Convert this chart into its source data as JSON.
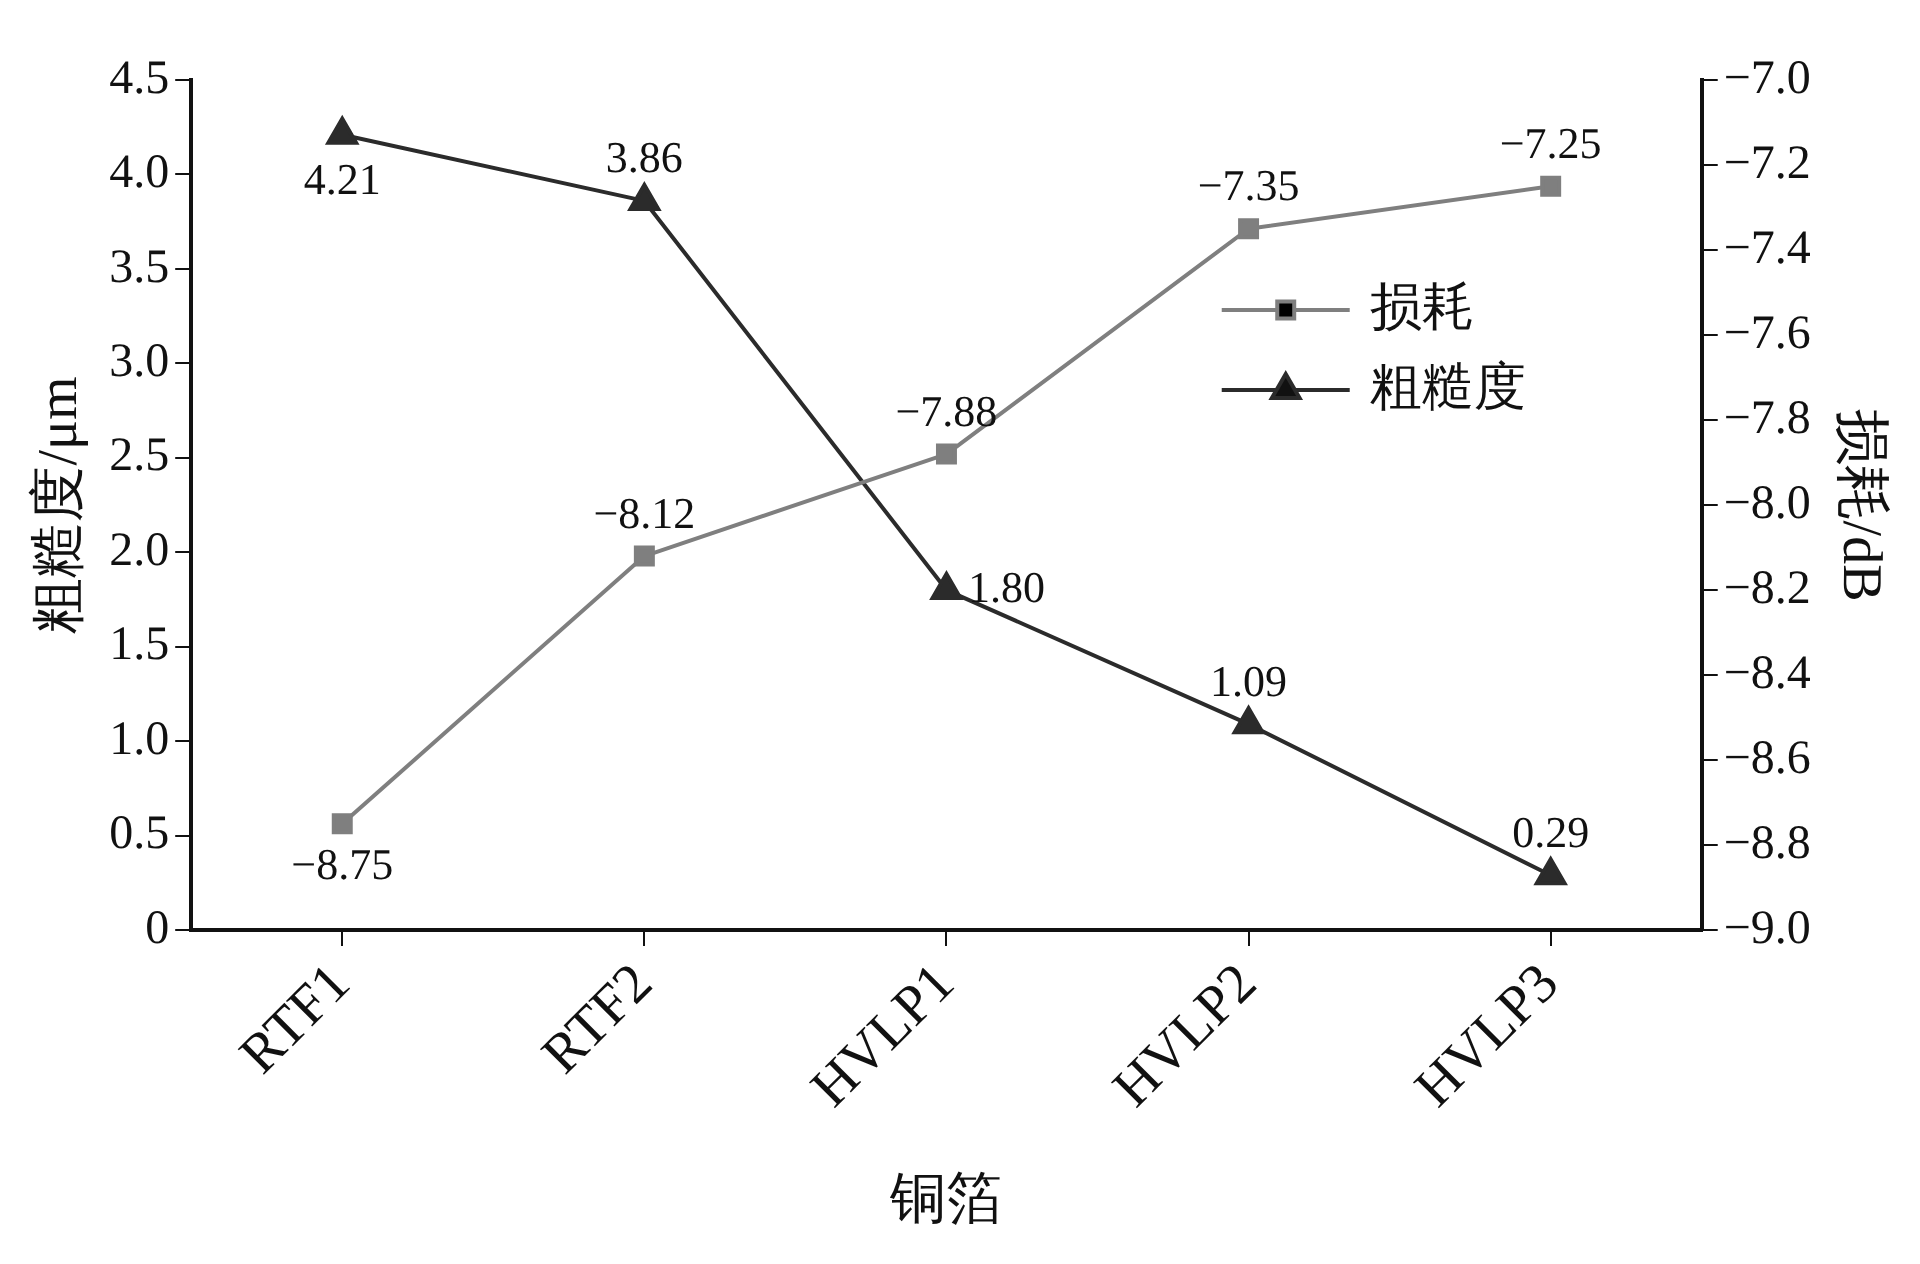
{
  "chart_data": {
    "type": "line",
    "xlabel": "铜箔",
    "ylabel": "粗糙度/μm",
    "y2label": "损耗/dB",
    "categories": [
      "RTF1",
      "RTF2",
      "HVLP1",
      "HVLP2",
      "HVLP3"
    ],
    "ylim": [
      0,
      4.5
    ],
    "yticks": [
      {
        "value": 0,
        "label": "0"
      },
      0.5,
      {
        "value": 1,
        "label": "1.0"
      },
      1.5,
      {
        "value": 2,
        "label": "2.0"
      },
      2.5,
      {
        "value": 3,
        "label": "3.0"
      },
      3.5,
      {
        "value": 4,
        "label": "4.0"
      },
      4.5
    ],
    "y2lim": [
      -9.0,
      -7.0
    ],
    "y2ticks": [
      {
        "value": -9,
        "label": "−9.0"
      },
      {
        "value": -8.8,
        "label": "−8.8"
      },
      {
        "value": -8.6,
        "label": "−8.6"
      },
      {
        "value": -8.4,
        "label": "−8.4"
      },
      {
        "value": -8.2,
        "label": "−8.2"
      },
      {
        "value": -8,
        "label": "−8.0"
      },
      {
        "value": -7.8,
        "label": "−7.8"
      },
      {
        "value": -7.6,
        "label": "−7.6"
      },
      {
        "value": -7.4,
        "label": "−7.4"
      },
      {
        "value": -7.2,
        "label": "−7.2"
      },
      {
        "value": -7,
        "label": "−7.0"
      }
    ],
    "series": [
      {
        "name": "损耗",
        "color": "#7f7f7f",
        "axis": "y2",
        "marker": "square",
        "values": [
          -8.75,
          -8.12,
          -7.88,
          -7.35,
          -7.25
        ],
        "value_labels": [
          "−8.75",
          "−8.12",
          "−7.88",
          "−7.35",
          "−7.25"
        ]
      },
      {
        "name": "粗糙度",
        "color": "#2b2b2b",
        "axis": "y",
        "marker": "triangle",
        "values": [
          4.21,
          3.86,
          1.8,
          1.09,
          0.29
        ],
        "value_labels": [
          "4.21",
          "3.86",
          "1.80",
          "1.09",
          "0.29"
        ]
      }
    ],
    "grid": false,
    "legend": "right",
    "line_style": "solid"
  }
}
